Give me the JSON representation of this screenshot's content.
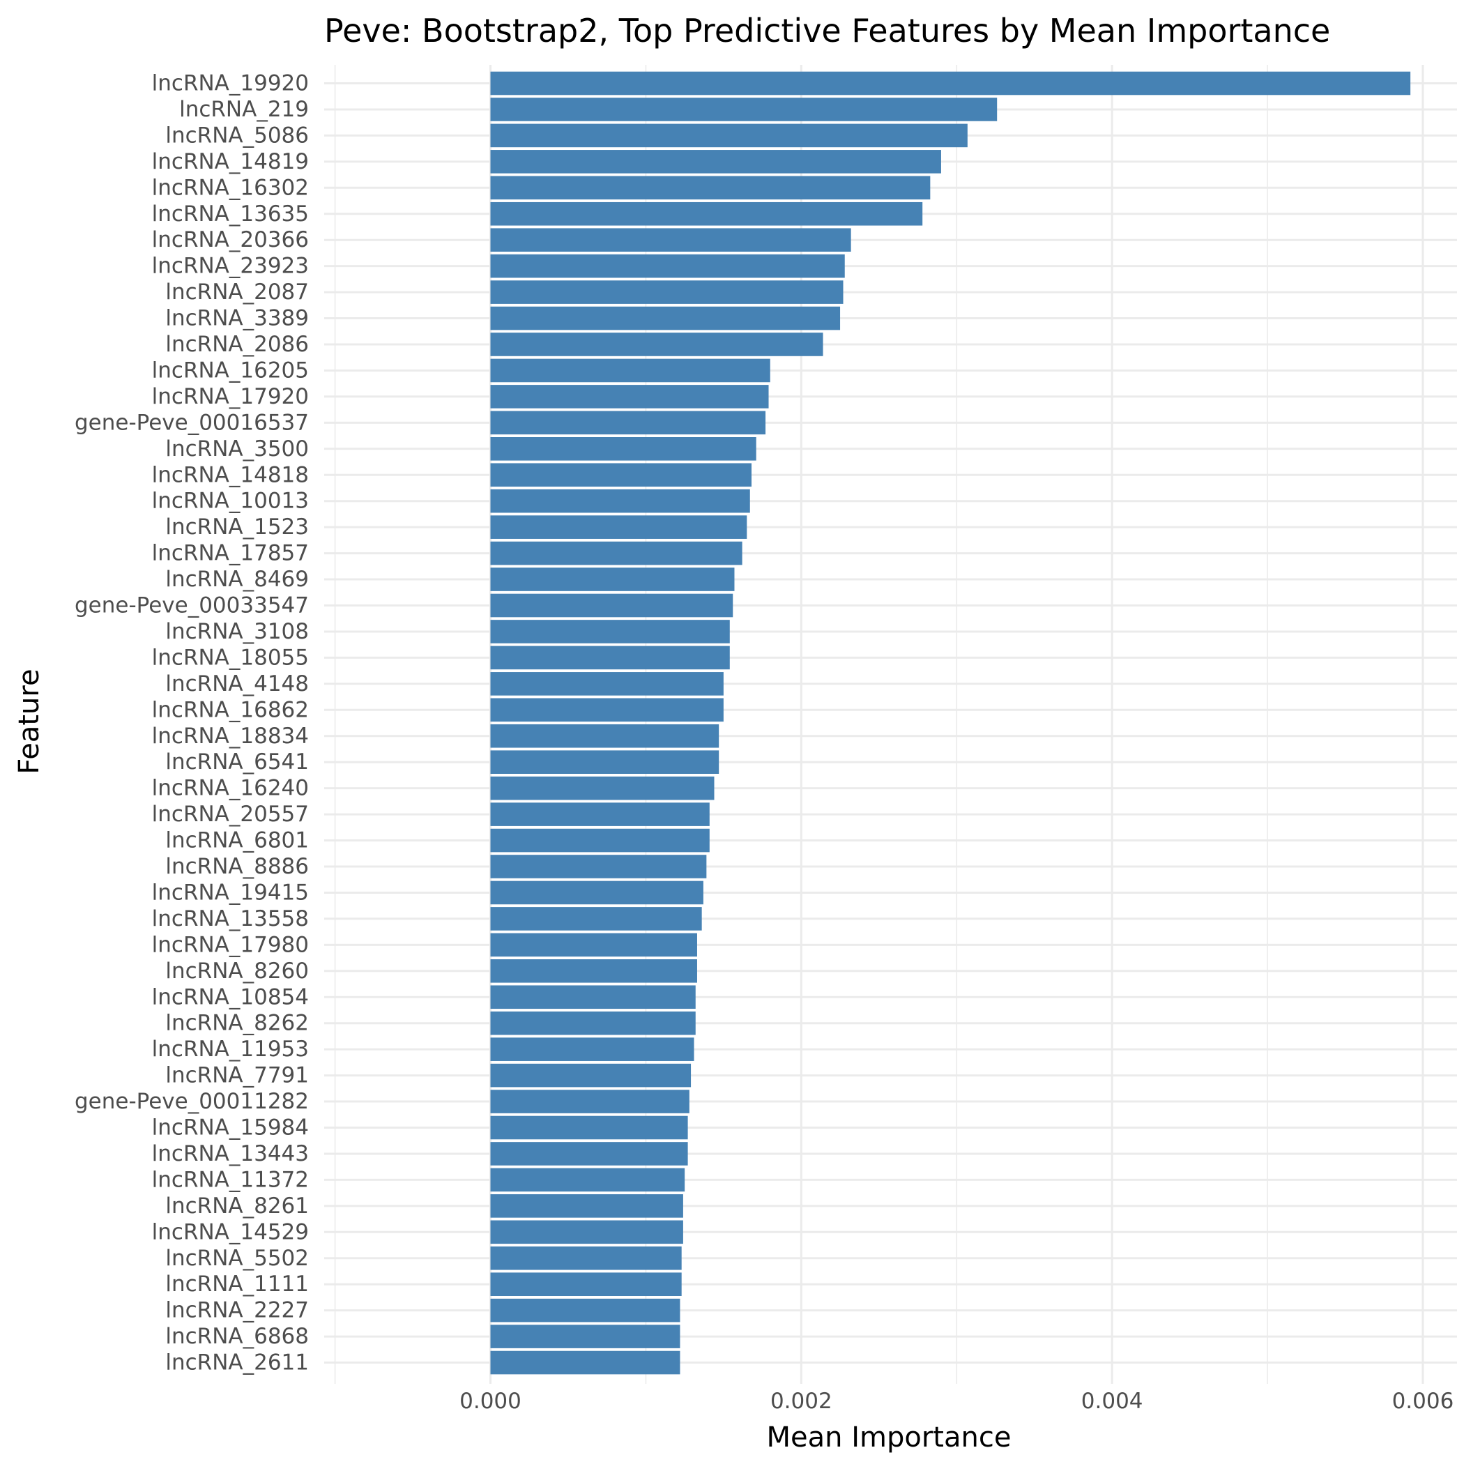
{
  "chart_data": {
    "type": "bar",
    "orientation": "horizontal",
    "title": "Peve: Bootstrap2, Top Predictive Features by Mean Importance",
    "xlabel": "Mean Importance",
    "ylabel": "Feature",
    "xlim": [
      -0.00107,
      0.00622
    ],
    "x_ticks": [
      "0.000",
      "0.002",
      "0.004",
      "0.006"
    ],
    "x_tick_values": [
      0,
      0.002,
      0.004,
      0.006
    ],
    "grid": true,
    "legend": "none",
    "bar_color": "#4682B4",
    "categories": [
      "lncRNA_19920",
      "lncRNA_219",
      "lncRNA_5086",
      "lncRNA_14819",
      "lncRNA_16302",
      "lncRNA_13635",
      "lncRNA_20366",
      "lncRNA_23923",
      "lncRNA_2087",
      "lncRNA_3389",
      "lncRNA_2086",
      "lncRNA_16205",
      "lncRNA_17920",
      "gene-Peve_00016537",
      "lncRNA_3500",
      "lncRNA_14818",
      "lncRNA_10013",
      "lncRNA_1523",
      "lncRNA_17857",
      "lncRNA_8469",
      "gene-Peve_00033547",
      "lncRNA_3108",
      "lncRNA_18055",
      "lncRNA_4148",
      "lncRNA_16862",
      "lncRNA_18834",
      "lncRNA_6541",
      "lncRNA_16240",
      "lncRNA_20557",
      "lncRNA_6801",
      "lncRNA_8886",
      "lncRNA_19415",
      "lncRNA_13558",
      "lncRNA_17980",
      "lncRNA_8260",
      "lncRNA_10854",
      "lncRNA_8262",
      "lncRNA_11953",
      "lncRNA_7791",
      "gene-Peve_00011282",
      "lncRNA_15984",
      "lncRNA_13443",
      "lncRNA_11372",
      "lncRNA_8261",
      "lncRNA_14529",
      "lncRNA_5502",
      "lncRNA_1111",
      "lncRNA_2227",
      "lncRNA_6868",
      "lncRNA_2611"
    ],
    "values": [
      0.00592,
      0.00326,
      0.00307,
      0.0029,
      0.00283,
      0.00278,
      0.00232,
      0.00228,
      0.00227,
      0.00225,
      0.00214,
      0.0018,
      0.00179,
      0.00177,
      0.00171,
      0.00168,
      0.00167,
      0.00165,
      0.00162,
      0.00157,
      0.00156,
      0.00154,
      0.00154,
      0.0015,
      0.0015,
      0.00147,
      0.00147,
      0.00144,
      0.00141,
      0.00141,
      0.00139,
      0.00137,
      0.00136,
      0.00133,
      0.00133,
      0.00132,
      0.00132,
      0.00131,
      0.00129,
      0.00128,
      0.00127,
      0.00127,
      0.00125,
      0.00124,
      0.00124,
      0.00123,
      0.00123,
      0.00122,
      0.00122,
      0.00122
    ]
  }
}
